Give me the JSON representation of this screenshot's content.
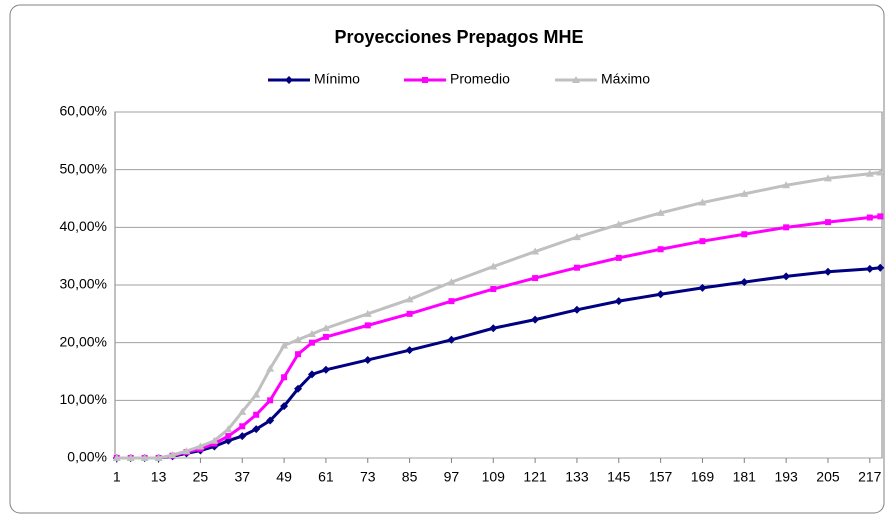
{
  "chart_data": {
    "type": "line",
    "title": "Proyecciones Prepagos MHE",
    "x": [
      1,
      5,
      9,
      13,
      17,
      21,
      25,
      29,
      33,
      37,
      41,
      45,
      49,
      53,
      57,
      61,
      73,
      85,
      97,
      109,
      121,
      133,
      145,
      157,
      169,
      181,
      193,
      205,
      217,
      220
    ],
    "series": [
      {
        "name": "Mínimo",
        "color": "#000080",
        "marker": "diamond",
        "values": [
          0,
          0,
          0,
          0,
          0.3,
          0.8,
          1.3,
          2,
          3,
          3.8,
          5,
          6.5,
          9,
          12,
          14.5,
          15.3,
          17,
          18.7,
          20.5,
          22.5,
          24,
          25.7,
          27.2,
          28.4,
          29.5,
          30.5,
          31.5,
          32.3,
          32.8,
          33
        ]
      },
      {
        "name": "Promedio",
        "color": "#ff00ff",
        "marker": "square",
        "values": [
          0,
          0,
          0,
          0,
          0.4,
          1,
          1.6,
          2.5,
          3.8,
          5.5,
          7.5,
          10,
          14,
          18,
          20,
          21,
          23,
          25,
          27.2,
          29.3,
          31.2,
          33,
          34.7,
          36.2,
          37.6,
          38.8,
          40,
          40.9,
          41.7,
          41.9
        ]
      },
      {
        "name": "Máximo",
        "color": "#c0c0c0",
        "marker": "triangle",
        "values": [
          0,
          0,
          0,
          0,
          0.5,
          1.2,
          2,
          3,
          5,
          8,
          11,
          15.5,
          19.5,
          20.5,
          21.5,
          22.5,
          25,
          27.5,
          30.5,
          33.2,
          35.8,
          38.3,
          40.5,
          42.5,
          44.3,
          45.8,
          47.3,
          48.5,
          49.3,
          49.5
        ]
      }
    ],
    "xlim": [
      0.5,
      220.5
    ],
    "xticks": [
      1,
      13,
      25,
      37,
      49,
      61,
      73,
      85,
      97,
      109,
      121,
      133,
      145,
      157,
      169,
      181,
      193,
      205,
      217
    ],
    "ylim": [
      0,
      60
    ],
    "yticks": [
      {
        "value": 0,
        "label": "0,00%"
      },
      {
        "value": 10,
        "label": "10,00%"
      },
      {
        "value": 20,
        "label": "20,00%"
      },
      {
        "value": 30,
        "label": "30,00%"
      },
      {
        "value": 40,
        "label": "40,00%"
      },
      {
        "value": 50,
        "label": "50,00%"
      },
      {
        "value": 60,
        "label": "60,00%"
      }
    ],
    "grid": true,
    "legend": "top"
  }
}
